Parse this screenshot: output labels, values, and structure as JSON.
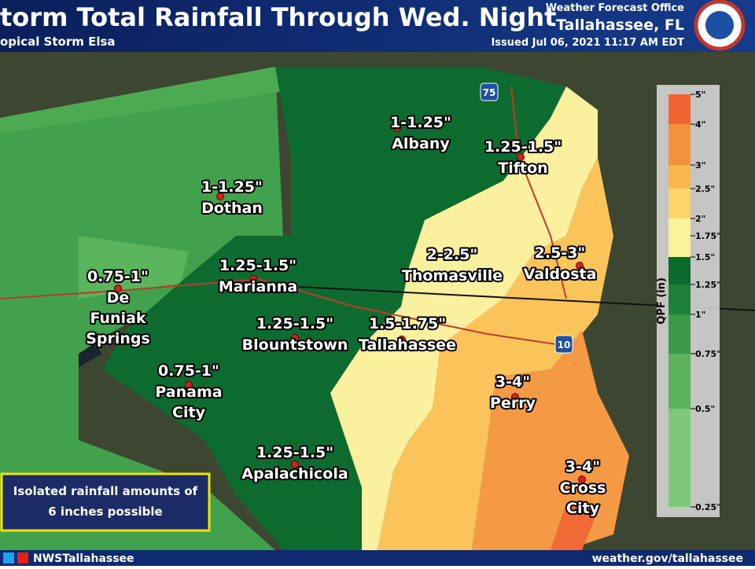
{
  "header": {
    "title": "torm Total Rainfall Through Wed. Night",
    "subtitle": "opical Storm Elsa",
    "office": "Weather Forecast Office",
    "location": "Tallahassee, FL",
    "issued": "Issued Jul 06, 2021 11:17 AM EDT"
  },
  "cities": [
    {
      "amount": "1-1.25\"",
      "name": [
        "Albany"
      ]
    },
    {
      "amount": "1.25-1.5\"",
      "name": [
        "Tifton"
      ]
    },
    {
      "amount": "1-1.25\"",
      "name": [
        "Dothan"
      ]
    },
    {
      "amount": "0.75-1\"",
      "name": [
        "De",
        "Funiak",
        "Springs"
      ]
    },
    {
      "amount": "1.25-1.5\"",
      "name": [
        "Marianna"
      ]
    },
    {
      "amount": "2-2.5\"",
      "name": [
        "Thomasville"
      ]
    },
    {
      "amount": "2.5-3\"",
      "name": [
        "Valdosta"
      ]
    },
    {
      "amount": "1.25-1.5\"",
      "name": [
        "Blountstown"
      ]
    },
    {
      "amount": "1.5-1.75\"",
      "name": [
        "Tallahassee"
      ]
    },
    {
      "amount": "0.75-1\"",
      "name": [
        "Panama",
        "City"
      ]
    },
    {
      "amount": "3-4\"",
      "name": [
        "Perry"
      ]
    },
    {
      "amount": "1.25-1.5\"",
      "name": [
        "Apalachicola"
      ]
    },
    {
      "amount": "3-4\"",
      "name": [
        "Cross",
        "City"
      ]
    }
  ],
  "highways": [
    "75",
    "10"
  ],
  "legend": {
    "title": "QPF (in)",
    "ticks": [
      "5\"",
      "4\"",
      "3\"",
      "2.5\"",
      "2\"",
      "1.75\"",
      "1.5\"",
      "1.25\"",
      "1\"",
      "0.75\"",
      "0.5\"",
      "0.25\""
    ]
  },
  "note": [
    "Isolated rainfall amounts of",
    "6 inches possible"
  ],
  "footer": {
    "handle": "NWSTallahassee",
    "url": "weather.gov/tallahassee"
  }
}
